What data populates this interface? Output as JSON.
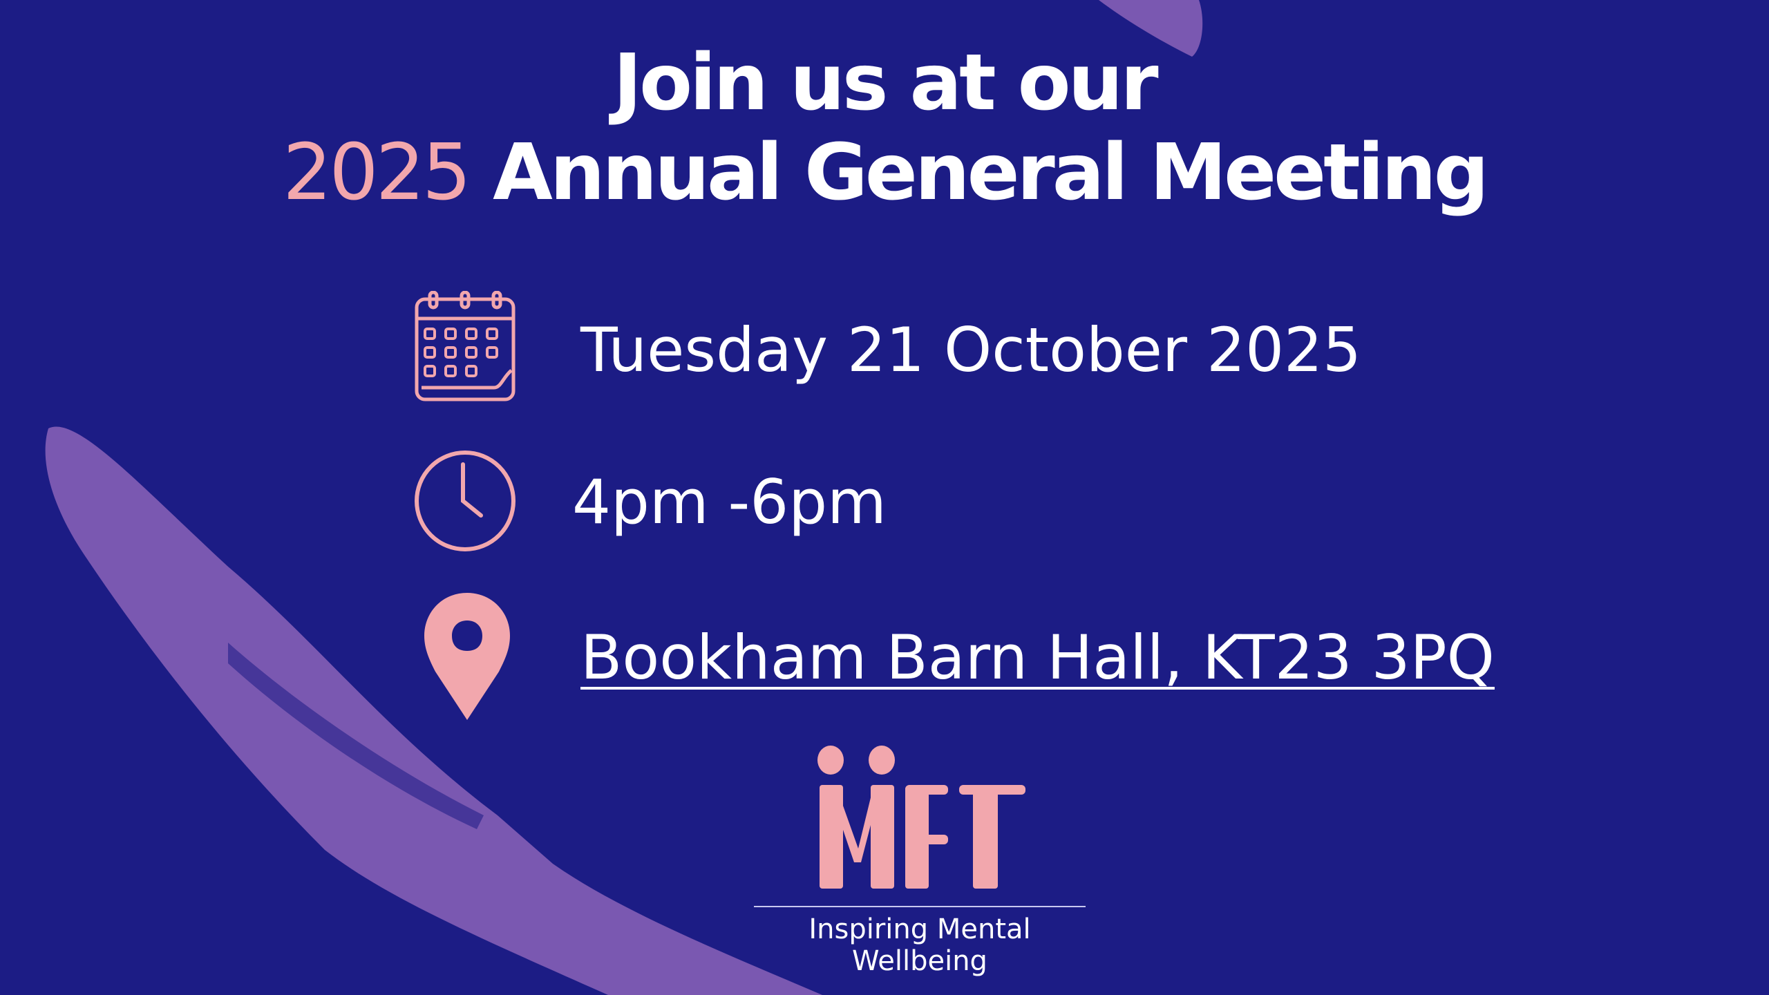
{
  "heading": {
    "line1": "Join us at our",
    "year": "2025",
    "line2_rest": "Annual General Meeting"
  },
  "details": {
    "date": "Tuesday 21 October 2025",
    "time": "4pm -6pm",
    "location": "Bookham Barn Hall, KT23 3PQ "
  },
  "icons": {
    "date": "calendar-icon",
    "time": "clock-icon",
    "location": "map-pin-icon"
  },
  "logo": {
    "letters": "MFT",
    "tagline": "Inspiring Mental Wellbeing"
  },
  "colors": {
    "background": "#1c1c85",
    "accent": "#f2a7ad",
    "brush": "#9a6cc0",
    "text": "#ffffff"
  }
}
